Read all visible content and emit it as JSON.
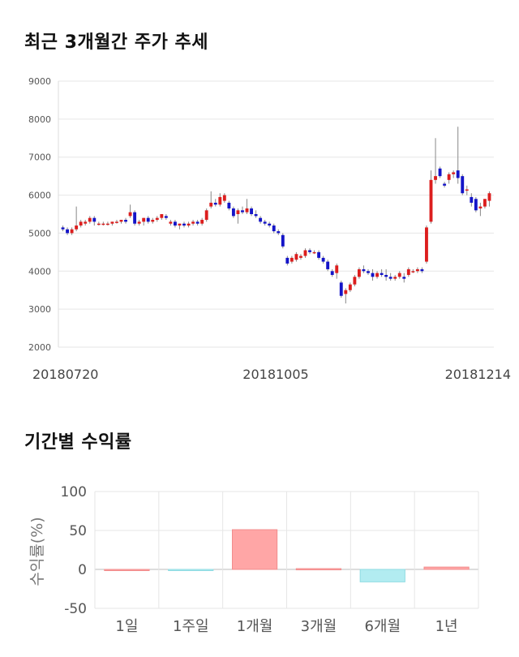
{
  "sections": {
    "price_title": "최근 3개월간 주가 추세",
    "returns_title": "기간별 수익률"
  },
  "colors": {
    "up": "#dc1e1e",
    "down": "#1414c8",
    "wick": "#888888",
    "grid": "#e6e6e6",
    "bar_positive": "#ffa6a6",
    "bar_negative": "#b2ecf1"
  },
  "chart_data": [
    {
      "type": "candlestick",
      "title": "최근 3개월간 주가 추세",
      "ylim": [
        2000,
        9000
      ],
      "y_ticks": [
        "2000",
        "3000",
        "4000",
        "5000",
        "6000",
        "7000",
        "8000",
        "9000"
      ],
      "x_labels": [
        "20180720",
        "20181005",
        "20181214"
      ],
      "grid": true,
      "ohlc": [
        [
          5150,
          5200,
          5050,
          5100
        ],
        [
          5100,
          5150,
          4950,
          5000
        ],
        [
          5000,
          5150,
          4950,
          5100
        ],
        [
          5100,
          5700,
          5050,
          5200
        ],
        [
          5200,
          5350,
          5150,
          5300
        ],
        [
          5250,
          5350,
          5200,
          5300
        ],
        [
          5300,
          5450,
          5250,
          5400
        ],
        [
          5400,
          5450,
          5200,
          5300
        ],
        [
          5250,
          5300,
          5200,
          5250
        ],
        [
          5250,
          5300,
          5200,
          5250
        ],
        [
          5250,
          5300,
          5200,
          5250
        ],
        [
          5250,
          5300,
          5200,
          5300
        ],
        [
          5300,
          5350,
          5250,
          5300
        ],
        [
          5300,
          5350,
          5250,
          5350
        ],
        [
          5350,
          5400,
          5250,
          5300
        ],
        [
          5450,
          5750,
          5400,
          5550
        ],
        [
          5550,
          5600,
          5200,
          5250
        ],
        [
          5250,
          5350,
          5200,
          5300
        ],
        [
          5300,
          5400,
          5200,
          5400
        ],
        [
          5400,
          5450,
          5250,
          5300
        ],
        [
          5300,
          5400,
          5250,
          5350
        ],
        [
          5350,
          5450,
          5300,
          5400
        ],
        [
          5400,
          5500,
          5350,
          5500
        ],
        [
          5450,
          5500,
          5350,
          5400
        ],
        [
          5250,
          5350,
          5200,
          5300
        ],
        [
          5300,
          5350,
          5150,
          5200
        ],
        [
          5200,
          5250,
          5100,
          5250
        ],
        [
          5250,
          5300,
          5150,
          5200
        ],
        [
          5200,
          5300,
          5150,
          5250
        ],
        [
          5250,
          5350,
          5200,
          5300
        ],
        [
          5300,
          5350,
          5200,
          5250
        ],
        [
          5250,
          5400,
          5200,
          5350
        ],
        [
          5350,
          5650,
          5300,
          5600
        ],
        [
          5700,
          6100,
          5650,
          5800
        ],
        [
          5800,
          5900,
          5700,
          5750
        ],
        [
          5750,
          6050,
          5700,
          5950
        ],
        [
          5850,
          6050,
          5800,
          6000
        ],
        [
          5800,
          5850,
          5600,
          5650
        ],
        [
          5650,
          5700,
          5400,
          5450
        ],
        [
          5500,
          5650,
          5250,
          5600
        ],
        [
          5600,
          5700,
          5500,
          5550
        ],
        [
          5550,
          5900,
          5500,
          5650
        ],
        [
          5650,
          5700,
          5450,
          5500
        ],
        [
          5500,
          5600,
          5400,
          5450
        ],
        [
          5400,
          5450,
          5250,
          5300
        ],
        [
          5300,
          5350,
          5200,
          5250
        ],
        [
          5250,
          5300,
          5150,
          5200
        ],
        [
          5200,
          5250,
          5000,
          5050
        ],
        [
          5050,
          5100,
          4950,
          5000
        ],
        [
          4950,
          5000,
          4600,
          4650
        ],
        [
          4350,
          4400,
          4150,
          4200
        ],
        [
          4250,
          4400,
          4200,
          4350
        ],
        [
          4300,
          4500,
          4250,
          4450
        ],
        [
          4350,
          4450,
          4300,
          4400
        ],
        [
          4400,
          4600,
          4350,
          4550
        ],
        [
          4550,
          4600,
          4450,
          4500
        ],
        [
          4500,
          4550,
          4450,
          4500
        ],
        [
          4500,
          4550,
          4300,
          4350
        ],
        [
          4350,
          4400,
          4200,
          4250
        ],
        [
          4250,
          4300,
          4000,
          4050
        ],
        [
          4000,
          4050,
          3850,
          3900
        ],
        [
          3950,
          4200,
          3800,
          4150
        ],
        [
          3700,
          3750,
          3300,
          3350
        ],
        [
          3400,
          3550,
          3150,
          3500
        ],
        [
          3500,
          3700,
          3450,
          3650
        ],
        [
          3650,
          3900,
          3600,
          3850
        ],
        [
          3850,
          4100,
          3800,
          4050
        ],
        [
          4050,
          4150,
          3950,
          4000
        ],
        [
          4000,
          4050,
          3900,
          3950
        ],
        [
          3950,
          4050,
          3750,
          3850
        ],
        [
          3850,
          4000,
          3800,
          3950
        ],
        [
          3950,
          4050,
          3850,
          3900
        ],
        [
          3900,
          4050,
          3750,
          3850
        ],
        [
          3850,
          3950,
          3750,
          3800
        ],
        [
          3800,
          3900,
          3750,
          3850
        ],
        [
          3850,
          4000,
          3800,
          3950
        ],
        [
          3850,
          3950,
          3700,
          3800
        ],
        [
          3900,
          4100,
          3850,
          4050
        ],
        [
          4000,
          4050,
          3950,
          4000
        ],
        [
          4000,
          4100,
          3950,
          4050
        ],
        [
          4050,
          4100,
          3950,
          4000
        ],
        [
          4250,
          5200,
          4200,
          5150
        ],
        [
          5300,
          6650,
          5250,
          6400
        ],
        [
          6400,
          7500,
          6300,
          6500
        ],
        [
          6700,
          6750,
          6450,
          6500
        ],
        [
          6300,
          6350,
          6200,
          6250
        ],
        [
          6400,
          6600,
          6300,
          6550
        ],
        [
          6550,
          6650,
          6450,
          6600
        ],
        [
          6650,
          7800,
          6300,
          6450
        ],
        [
          6500,
          6550,
          6000,
          6050
        ],
        [
          6150,
          6250,
          6000,
          6150
        ],
        [
          5950,
          6050,
          5700,
          5800
        ],
        [
          5900,
          5950,
          5550,
          5600
        ],
        [
          5650,
          5800,
          5450,
          5700
        ],
        [
          5700,
          5900,
          5650,
          5900
        ],
        [
          5850,
          6100,
          5700,
          6050
        ]
      ]
    },
    {
      "type": "bar",
      "title": "기간별 수익률",
      "ylabel": "수익률(%)",
      "ylim": [
        -50,
        100
      ],
      "y_ticks": [
        "100",
        "50",
        "0",
        "-50"
      ],
      "categories": [
        "1일",
        "1주일",
        "1개월",
        "3개월",
        "6개월",
        "1년"
      ],
      "values": [
        0,
        -1,
        51,
        1,
        -16,
        3
      ],
      "grid": true
    }
  ]
}
